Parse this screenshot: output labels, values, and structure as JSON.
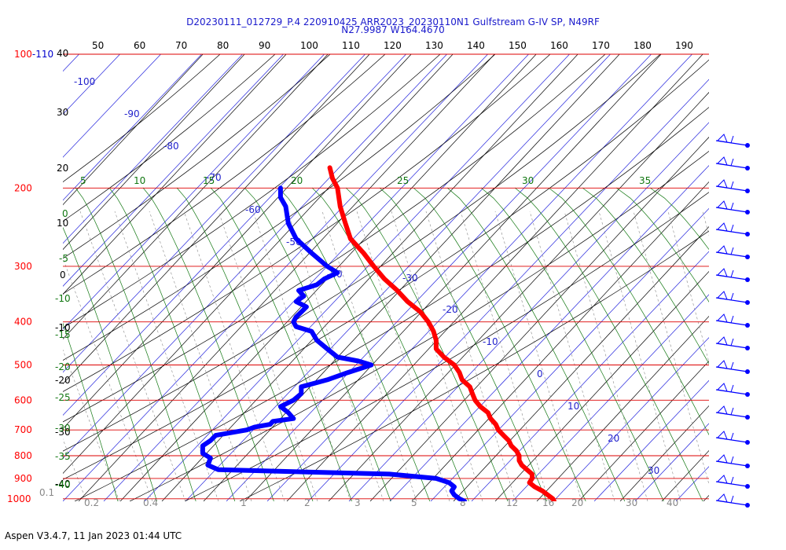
{
  "title_line1": "D20230111_012729_P.4 220910425 ARR2023_20230110N1 Gulfstream G-IV SP, N49RF",
  "title_line2": "N27.9987 W164.4670",
  "footer": "Aspen V3.4.7, 11 Jan 2023  01:44 UTC",
  "chart_data": {
    "type": "skew-t",
    "title": "D20230111_012729_P.4 220910425 ARR2023_20230110N1 Gulfstream G-IV SP, N49RF",
    "subtitle": "N27.9987 W164.4670",
    "top_temperature_labels": [
      "50",
      "60",
      "70",
      "80",
      "90",
      "100",
      "110",
      "120",
      "130",
      "140",
      "150",
      "160",
      "170",
      "180",
      "190"
    ],
    "pressure_labels": [
      {
        "p": 100,
        "label": "100-110"
      },
      {
        "p": 200,
        "label": "200"
      },
      {
        "p": 300,
        "label": "300"
      },
      {
        "p": 400,
        "label": "400"
      },
      {
        "p": 500,
        "label": "500"
      },
      {
        "p": 600,
        "label": "600"
      },
      {
        "p": 700,
        "label": "700"
      },
      {
        "p": 800,
        "label": "800"
      },
      {
        "p": 900,
        "label": "900"
      },
      {
        "p": 1000,
        "label": "1000"
      }
    ],
    "isotherm_labels": [
      "-100",
      "-90",
      "-80",
      "-70",
      "-60",
      "-50",
      "-40",
      "-30",
      "-20",
      "-10",
      "0",
      "10",
      "20",
      "30"
    ],
    "left_temperature_labels": [
      "40",
      "30",
      "20",
      "10",
      "0",
      "-10",
      "-20",
      "-30",
      "-40"
    ],
    "mixing_ratio_labels": [
      "0.1",
      "0.2",
      "0.4",
      "1",
      "2",
      "3",
      "5",
      "8",
      "12",
      "16",
      "20",
      "30",
      "40"
    ],
    "theta_e_labels": [
      "5",
      "10",
      "15",
      "20",
      "25",
      "30",
      "35"
    ],
    "left_green_labels": [
      "0",
      "-5",
      "-10",
      "-15",
      "-20",
      "-25",
      "-30",
      "-35",
      "-40"
    ],
    "pressure_range_hpa": [
      100,
      1000
    ],
    "series": [
      {
        "type": "temperature",
        "color": "#ff0000",
        "points": [
          [
            180,
            -61
          ],
          [
            190,
            -60
          ],
          [
            200,
            -58
          ],
          [
            220,
            -57
          ],
          [
            240,
            -55
          ],
          [
            260,
            -53
          ],
          [
            280,
            -48
          ],
          [
            300,
            -44
          ],
          [
            320,
            -40
          ],
          [
            340,
            -35
          ],
          [
            360,
            -31
          ],
          [
            380,
            -26
          ],
          [
            400,
            -23
          ],
          [
            420,
            -21
          ],
          [
            440,
            -20
          ],
          [
            460,
            -20
          ],
          [
            480,
            -17
          ],
          [
            500,
            -13
          ],
          [
            520,
            -11
          ],
          [
            540,
            -10
          ],
          [
            560,
            -7
          ],
          [
            580,
            -6
          ],
          [
            600,
            -5
          ],
          [
            620,
            -3
          ],
          [
            640,
            0
          ],
          [
            660,
            1
          ],
          [
            680,
            3
          ],
          [
            700,
            4
          ],
          [
            720,
            6
          ],
          [
            740,
            8
          ],
          [
            760,
            9
          ],
          [
            780,
            11
          ],
          [
            800,
            12
          ],
          [
            820,
            12
          ],
          [
            840,
            13
          ],
          [
            860,
            15
          ],
          [
            880,
            17
          ],
          [
            900,
            17
          ],
          [
            920,
            16
          ],
          [
            940,
            18
          ],
          [
            960,
            21
          ],
          [
            980,
            23
          ],
          [
            1000,
            25
          ],
          [
            1013,
            25.5
          ]
        ]
      },
      {
        "type": "dewpoint",
        "color": "#0000ff",
        "points": [
          [
            200,
            -80
          ],
          [
            210,
            -80
          ],
          [
            220,
            -78
          ],
          [
            240,
            -77
          ],
          [
            260,
            -74
          ],
          [
            280,
            -68
          ],
          [
            300,
            -62
          ],
          [
            310,
            -58
          ],
          [
            320,
            -63
          ],
          [
            330,
            -66
          ],
          [
            340,
            -73
          ],
          [
            350,
            -71
          ],
          [
            360,
            -74
          ],
          [
            370,
            -70
          ],
          [
            380,
            -72
          ],
          [
            390,
            -74
          ],
          [
            400,
            -75
          ],
          [
            410,
            -74
          ],
          [
            420,
            -68
          ],
          [
            440,
            -66
          ],
          [
            460,
            -62
          ],
          [
            480,
            -58
          ],
          [
            490,
            -50
          ],
          [
            500,
            -45
          ],
          [
            520,
            -54
          ],
          [
            540,
            -62
          ],
          [
            560,
            -72
          ],
          [
            580,
            -72
          ],
          [
            600,
            -75
          ],
          [
            620,
            -80
          ],
          [
            640,
            -77
          ],
          [
            660,
            -75
          ],
          [
            670,
            -83
          ],
          [
            680,
            -84
          ],
          [
            690,
            -90
          ],
          [
            700,
            -93
          ],
          [
            720,
            -105
          ],
          [
            740,
            -107
          ],
          [
            760,
            -110
          ],
          [
            790,
            -110
          ],
          [
            810,
            -107
          ],
          [
            840,
            -108
          ],
          [
            860,
            -104
          ],
          [
            880,
            -38
          ],
          [
            900,
            -20
          ],
          [
            920,
            -15
          ],
          [
            940,
            -13
          ],
          [
            960,
            -14
          ],
          [
            980,
            -13
          ],
          [
            1000,
            -11
          ],
          [
            1013,
            -9
          ]
        ]
      }
    ],
    "wind_barbs_count": 17
  }
}
